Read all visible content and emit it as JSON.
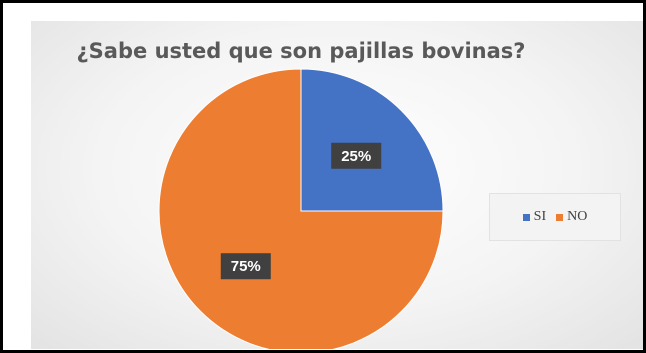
{
  "chart_data": {
    "type": "pie",
    "title": "¿Sabe usted que son pajillas bovinas?",
    "categories": [
      "SI",
      "NO"
    ],
    "values": [
      25,
      75
    ],
    "data_labels": [
      "25%",
      "75%"
    ],
    "colors": [
      "#4472C4",
      "#ED7D31"
    ],
    "legend": "right"
  }
}
